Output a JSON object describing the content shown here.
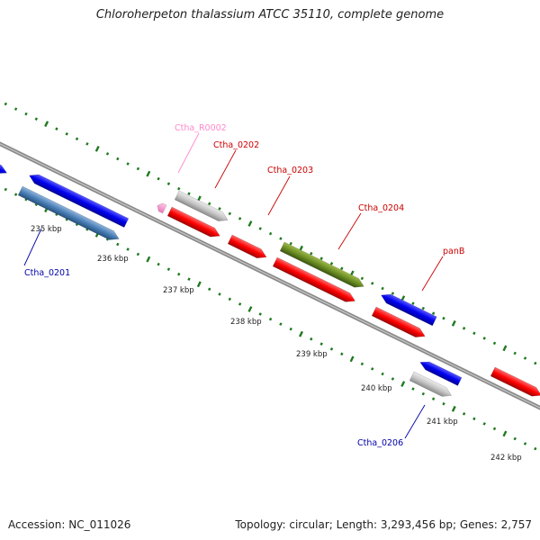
{
  "title": "Chloroherpeton thalassium ATCC 35110, complete genome",
  "footer": {
    "accession": "Accession: NC_011026",
    "topology": "Topology: circular; Length: 3,293,456 bp; Genes: 2,757"
  },
  "colors": {
    "backbone": "#808080",
    "forward_cds": "#0000ff",
    "reverse_cds": "#ff0000",
    "rna": "#ff9ad5",
    "pseudo": "#bdbdbd",
    "olive": "#6b8e23",
    "steel": "#4a7fb6",
    "tick": "#1f7a1f"
  },
  "scale_ticks": [
    "235 kbp",
    "236 kbp",
    "237 kbp",
    "238 kbp",
    "239 kbp",
    "240 kbp",
    "241 kbp",
    "242 kbp"
  ],
  "gene_labels": [
    {
      "text": "Ctha_0201",
      "color": "#0000aa"
    },
    {
      "text": "Ctha_R0002",
      "color": "#ff88cc"
    },
    {
      "text": "Ctha_0202",
      "color": "#cc0000"
    },
    {
      "text": "Ctha_0203",
      "color": "#cc0000"
    },
    {
      "text": "Ctha_0204",
      "color": "#cc0000"
    },
    {
      "text": "panB",
      "color": "#cc0000"
    },
    {
      "text": "Ctha_0206",
      "color": "#0000aa"
    }
  ]
}
